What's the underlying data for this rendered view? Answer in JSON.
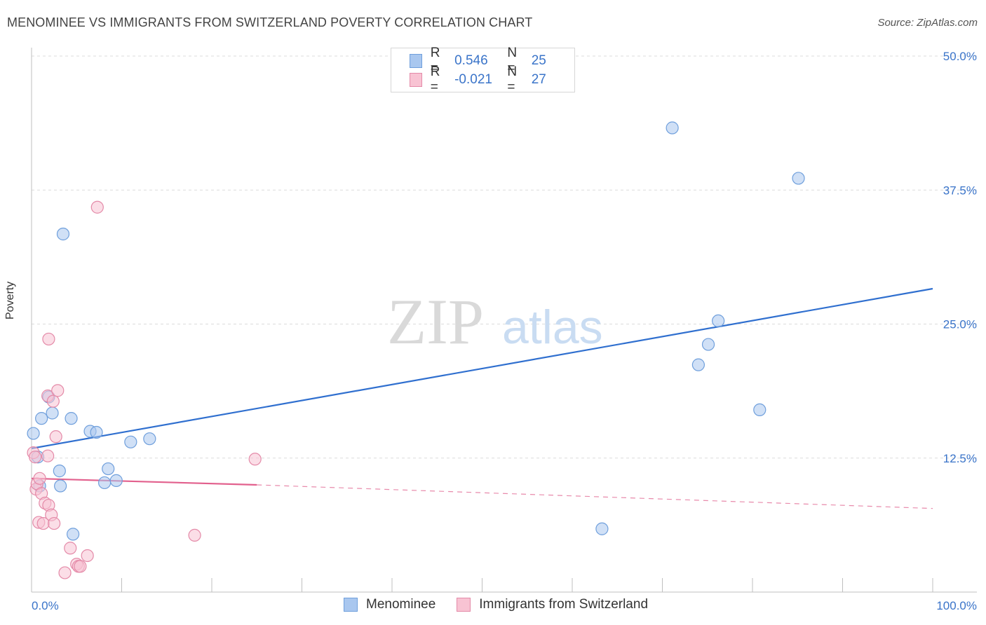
{
  "title": "MENOMINEE VS IMMIGRANTS FROM SWITZERLAND POVERTY CORRELATION CHART",
  "source": "Source: ZipAtlas.com",
  "watermark": {
    "zip": "ZIP",
    "atlas": "atlas"
  },
  "legend": {
    "rows": [
      {
        "r_label": "R =",
        "r_value": "0.546",
        "n_label": "N =",
        "n_value": "25",
        "color": "#a9c7ef",
        "border": "#6f9fdc"
      },
      {
        "r_label": "R =",
        "r_value": "-0.021",
        "n_label": "N =",
        "n_value": "27",
        "color": "#f8c3d3",
        "border": "#e48aa8"
      }
    ],
    "series": [
      "Menominee",
      "Immigrants from Switzerland"
    ]
  },
  "chart_data": {
    "type": "scatter",
    "title": "MENOMINEE VS IMMIGRANTS FROM SWITZERLAND POVERTY CORRELATION CHART",
    "xlabel": "",
    "ylabel": "Poverty",
    "xlim": [
      0,
      100
    ],
    "ylim": [
      0,
      50
    ],
    "x_tick_labels": [
      "0.0%",
      "100.0%"
    ],
    "y_ticks": [
      12.5,
      25.0,
      37.5,
      50.0
    ],
    "y_tick_labels": [
      "12.5%",
      "25.0%",
      "37.5%",
      "50.0%"
    ],
    "grid": true,
    "legend_position": "top-center",
    "series": [
      {
        "name": "Menominee",
        "color": "#6f9fdc",
        "fill": "#a9c7ef",
        "points": [
          [
            0.2,
            14.8
          ],
          [
            0.7,
            12.6
          ],
          [
            1.1,
            16.2
          ],
          [
            1.9,
            18.2
          ],
          [
            2.3,
            16.7
          ],
          [
            3.1,
            11.3
          ],
          [
            3.2,
            9.9
          ],
          [
            3.5,
            33.4
          ],
          [
            4.4,
            16.2
          ],
          [
            4.6,
            5.4
          ],
          [
            6.5,
            15.0
          ],
          [
            7.2,
            14.9
          ],
          [
            8.1,
            10.2
          ],
          [
            8.5,
            11.5
          ],
          [
            9.4,
            10.4
          ],
          [
            11.0,
            14.0
          ],
          [
            13.1,
            14.3
          ],
          [
            0.9,
            9.9
          ],
          [
            63.3,
            5.9
          ],
          [
            71.1,
            43.3
          ],
          [
            74.0,
            21.2
          ],
          [
            75.1,
            23.1
          ],
          [
            76.2,
            25.3
          ],
          [
            80.8,
            17.0
          ],
          [
            85.1,
            38.6
          ]
        ],
        "trend": {
          "x": [
            0,
            100
          ],
          "y": [
            13.4,
            28.3
          ],
          "style": "solid"
        }
      },
      {
        "name": "Immigrants from Switzerland",
        "color": "#e48aa8",
        "fill": "#f8c3d3",
        "points": [
          [
            0.2,
            13.0
          ],
          [
            0.5,
            9.6
          ],
          [
            0.6,
            10.1
          ],
          [
            0.8,
            6.5
          ],
          [
            0.9,
            10.6
          ],
          [
            1.1,
            9.2
          ],
          [
            1.3,
            6.4
          ],
          [
            1.5,
            8.3
          ],
          [
            1.8,
            12.7
          ],
          [
            1.9,
            8.1
          ],
          [
            1.8,
            18.3
          ],
          [
            1.9,
            23.6
          ],
          [
            2.2,
            7.2
          ],
          [
            2.4,
            17.8
          ],
          [
            2.5,
            6.4
          ],
          [
            2.7,
            14.5
          ],
          [
            2.9,
            18.8
          ],
          [
            3.7,
            1.8
          ],
          [
            4.3,
            4.1
          ],
          [
            5.0,
            2.6
          ],
          [
            5.2,
            2.4
          ],
          [
            5.4,
            2.4
          ],
          [
            6.2,
            3.4
          ],
          [
            7.3,
            35.9
          ],
          [
            18.1,
            5.3
          ],
          [
            24.8,
            12.4
          ],
          [
            0.4,
            12.6
          ]
        ],
        "trend": {
          "x": [
            0,
            25,
            100
          ],
          "y": [
            10.6,
            10.0,
            7.8
          ],
          "style": "solid-then-dashed"
        }
      }
    ]
  }
}
